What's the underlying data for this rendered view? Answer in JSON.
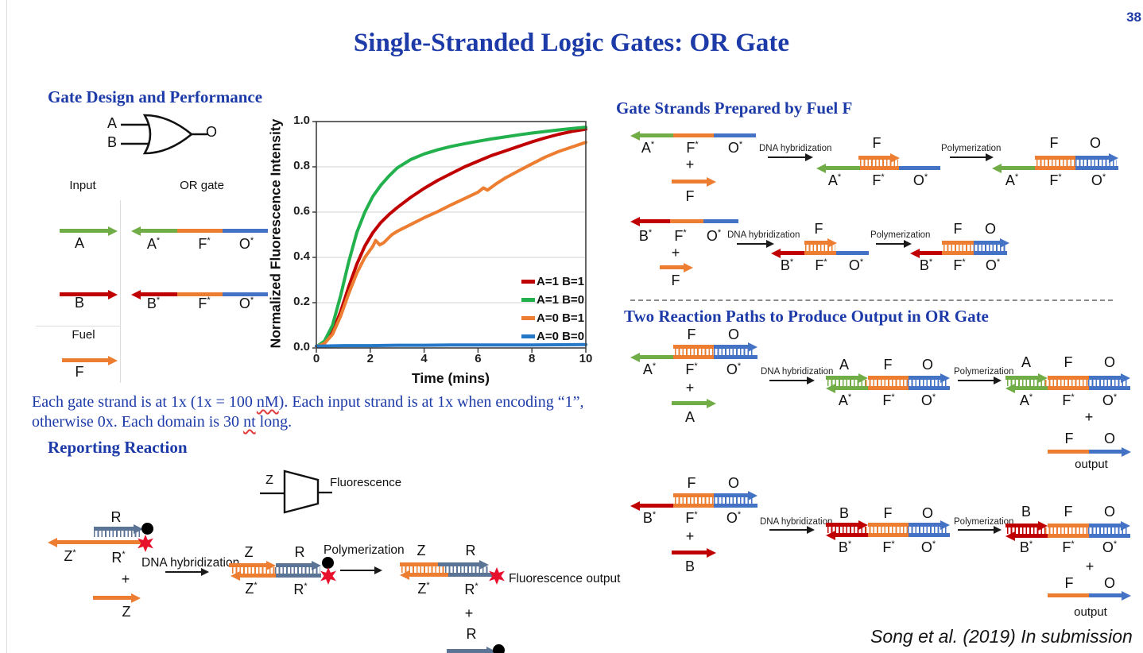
{
  "page": {
    "number": "38",
    "title": "Single-Stranded Logic Gates: OR Gate",
    "citation": "Song et al. (2019) In submission"
  },
  "colors": {
    "heading": "#1c3aa8",
    "green": "#70ad47",
    "red": "#c00000",
    "orange": "#ed7d31",
    "blue": "#4472c4",
    "slate": "#5b7394",
    "fluorophore": "#e8112d",
    "quencher": "#000000"
  },
  "s": {
    "A": "A",
    "B": "B",
    "F": "F",
    "O": "O",
    "Z": "Z",
    "R": "R",
    "star": "*",
    "plus": "+",
    "output": "output",
    "input": "Input",
    "or_gate": "OR gate",
    "fuel": "Fuel",
    "dna": "DNA hybridization",
    "poly": "Polymerization",
    "fluor": "Fluorescence",
    "fluor_out": "Fluorescence output"
  },
  "left": {
    "heading": "Gate Design and Performance",
    "reporting_heading": "Reporting Reaction",
    "note_l1a": "Each gate strand is at 1x (1x = 100 ",
    "note_l1b": "nM",
    "note_l1c": "). Each input strand is at 1x  when encoding “1”,",
    "note_l2a": "otherwise 0x. Each domain is 30 ",
    "note_l2b": "nt",
    "note_l2c": " long."
  },
  "right": {
    "fuel_heading": "Gate Strands Prepared by Fuel F",
    "paths_heading": "Two Reaction Paths to Produce Output in OR Gate"
  },
  "chart_data": {
    "type": "line",
    "title": "",
    "xlabel": "Time (mins)",
    "ylabel": "Normalized Fluorescence Intensity",
    "xlim": [
      0,
      10
    ],
    "ylim": [
      0,
      1
    ],
    "xticks": [
      0,
      2,
      4,
      6,
      8,
      10
    ],
    "yticks": [
      "0.0",
      "0.2",
      "0.4",
      "0.6",
      "0.8",
      "1.0"
    ],
    "grid": true,
    "legend_position": "lower right",
    "series": [
      {
        "name": "A=1 B=1",
        "color": "#c00000",
        "points": [
          [
            0,
            0.005
          ],
          [
            0.3,
            0.02
          ],
          [
            0.6,
            0.07
          ],
          [
            0.9,
            0.16
          ],
          [
            1.2,
            0.27
          ],
          [
            1.5,
            0.37
          ],
          [
            1.8,
            0.45
          ],
          [
            2.1,
            0.51
          ],
          [
            2.4,
            0.555
          ],
          [
            2.7,
            0.59
          ],
          [
            3,
            0.62
          ],
          [
            3.5,
            0.665
          ],
          [
            4,
            0.705
          ],
          [
            4.5,
            0.74
          ],
          [
            5,
            0.77
          ],
          [
            5.5,
            0.8
          ],
          [
            6,
            0.825
          ],
          [
            6.5,
            0.85
          ],
          [
            7,
            0.87
          ],
          [
            7.5,
            0.89
          ],
          [
            8,
            0.91
          ],
          [
            8.5,
            0.928
          ],
          [
            9,
            0.944
          ],
          [
            9.5,
            0.957
          ],
          [
            10,
            0.966
          ]
        ]
      },
      {
        "name": "A=1 B=0",
        "color": "#22b14c",
        "points": [
          [
            0,
            0.005
          ],
          [
            0.3,
            0.03
          ],
          [
            0.6,
            0.1
          ],
          [
            0.9,
            0.23
          ],
          [
            1.2,
            0.38
          ],
          [
            1.5,
            0.51
          ],
          [
            1.8,
            0.6
          ],
          [
            2.1,
            0.67
          ],
          [
            2.4,
            0.72
          ],
          [
            2.7,
            0.76
          ],
          [
            3,
            0.795
          ],
          [
            3.5,
            0.832
          ],
          [
            4,
            0.857
          ],
          [
            4.5,
            0.875
          ],
          [
            5,
            0.89
          ],
          [
            5.5,
            0.902
          ],
          [
            6,
            0.913
          ],
          [
            6.5,
            0.923
          ],
          [
            7,
            0.932
          ],
          [
            7.5,
            0.941
          ],
          [
            8,
            0.949
          ],
          [
            8.5,
            0.956
          ],
          [
            9,
            0.963
          ],
          [
            9.5,
            0.969
          ],
          [
            10,
            0.975
          ]
        ]
      },
      {
        "name": "A=0 B=1",
        "color": "#ed7d31",
        "points": [
          [
            0,
            0.005
          ],
          [
            0.3,
            0.02
          ],
          [
            0.6,
            0.06
          ],
          [
            0.9,
            0.14
          ],
          [
            1.2,
            0.24
          ],
          [
            1.5,
            0.33
          ],
          [
            1.8,
            0.4
          ],
          [
            2.1,
            0.45
          ],
          [
            2.2,
            0.475
          ],
          [
            2.35,
            0.455
          ],
          [
            2.5,
            0.465
          ],
          [
            2.8,
            0.5
          ],
          [
            3,
            0.515
          ],
          [
            3.5,
            0.545
          ],
          [
            4,
            0.575
          ],
          [
            4.5,
            0.602
          ],
          [
            5,
            0.632
          ],
          [
            5.5,
            0.66
          ],
          [
            6,
            0.688
          ],
          [
            6.2,
            0.707
          ],
          [
            6.35,
            0.697
          ],
          [
            6.7,
            0.727
          ],
          [
            7,
            0.75
          ],
          [
            7.5,
            0.782
          ],
          [
            8,
            0.813
          ],
          [
            8.5,
            0.843
          ],
          [
            9,
            0.868
          ],
          [
            9.5,
            0.888
          ],
          [
            10,
            0.908
          ]
        ]
      },
      {
        "name": "A=0 B=0",
        "color": "#2578c8",
        "points": [
          [
            0,
            0.008
          ],
          [
            1,
            0.01
          ],
          [
            2,
            0.01
          ],
          [
            3,
            0.012
          ],
          [
            4,
            0.012
          ],
          [
            5,
            0.013
          ],
          [
            6,
            0.013
          ],
          [
            7,
            0.013
          ],
          [
            8,
            0.013
          ],
          [
            9,
            0.014
          ],
          [
            10,
            0.015
          ]
        ]
      }
    ]
  }
}
